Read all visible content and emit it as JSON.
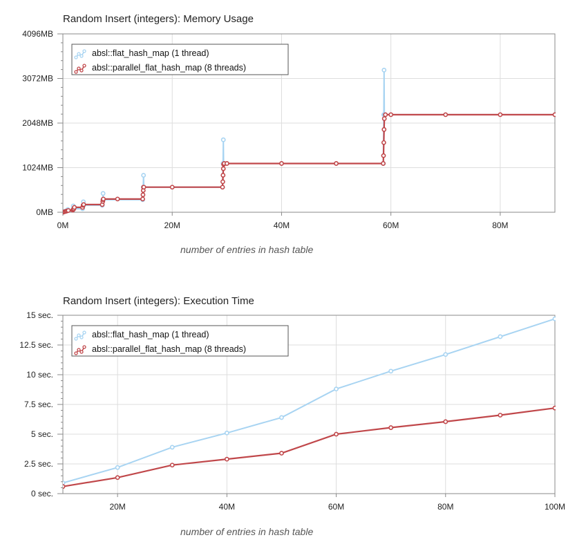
{
  "chart_data": [
    {
      "type": "line",
      "title": "Random Insert (integers): Memory Usage",
      "xlabel": "number of entries in hash table",
      "ylabel": "",
      "x_unit": "entries",
      "xlim": [
        0,
        90000000
      ],
      "ylim": [
        0,
        4096
      ],
      "x_ticks": [
        0,
        20000000,
        40000000,
        60000000,
        80000000
      ],
      "x_tick_labels": [
        "0M",
        "20M",
        "40M",
        "60M",
        "80M"
      ],
      "y_ticks": [
        0,
        1024,
        2048,
        3072,
        4096
      ],
      "y_tick_labels": [
        "0MB",
        "1024MB",
        "2048MB",
        "3072MB",
        "4096MB"
      ],
      "grid": true,
      "legend_position": "top-left",
      "series": [
        {
          "name": "absl::flat_hash_map (1 thread)",
          "color": "#a8d4f2",
          "points": [
            [
              0,
              0
            ],
            [
              200000,
              16
            ],
            [
              400000,
              24
            ],
            [
              600000,
              24
            ],
            [
              800000,
              48
            ],
            [
              900000,
              64
            ],
            [
              1000000,
              40
            ],
            [
              1800000,
              48
            ],
            [
              1900000,
              80
            ],
            [
              1900000,
              144
            ],
            [
              1950000,
              80
            ],
            [
              3600000,
              80
            ],
            [
              3700000,
              160
            ],
            [
              3750000,
              240
            ],
            [
              3800000,
              160
            ],
            [
              7200000,
              160
            ],
            [
              7300000,
              288
            ],
            [
              7350000,
              432
            ],
            [
              7400000,
              288
            ],
            [
              14600000,
              288
            ],
            [
              14700000,
              576
            ],
            [
              14750000,
              848
            ],
            [
              14800000,
              576
            ],
            [
              29200000,
              576
            ],
            [
              29300000,
              1120
            ],
            [
              29350000,
              1664
            ],
            [
              29400000,
              1120
            ],
            [
              58600000,
              1120
            ],
            [
              58700000,
              2240
            ],
            [
              58750000,
              3264
            ],
            [
              58800000,
              2240
            ],
            [
              90000000,
              2240
            ]
          ]
        },
        {
          "name": "absl::parallel_flat_hash_map (8 threads)",
          "color": "#c0474a",
          "points": [
            [
              0,
              0
            ],
            [
              200000,
              8
            ],
            [
              400000,
              16
            ],
            [
              600000,
              24
            ],
            [
              800000,
              32
            ],
            [
              1000000,
              40
            ],
            [
              1800000,
              48
            ],
            [
              1900000,
              64
            ],
            [
              2000000,
              80
            ],
            [
              2100000,
              112
            ],
            [
              3600000,
              112
            ],
            [
              3700000,
              160
            ],
            [
              3800000,
              176
            ],
            [
              7200000,
              176
            ],
            [
              7300000,
              248
            ],
            [
              7350000,
              288
            ],
            [
              7400000,
              304
            ],
            [
              10000000,
              304
            ],
            [
              14600000,
              304
            ],
            [
              14650000,
              400
            ],
            [
              14700000,
              500
            ],
            [
              14750000,
              576
            ],
            [
              14800000,
              576
            ],
            [
              20000000,
              576
            ],
            [
              29200000,
              576
            ],
            [
              29250000,
              700
            ],
            [
              29300000,
              850
            ],
            [
              29350000,
              1000
            ],
            [
              29400000,
              1100
            ],
            [
              29500000,
              1120
            ],
            [
              30000000,
              1120
            ],
            [
              40000000,
              1120
            ],
            [
              50000000,
              1120
            ],
            [
              58600000,
              1120
            ],
            [
              58650000,
              1300
            ],
            [
              58700000,
              1600
            ],
            [
              58750000,
              1900
            ],
            [
              58800000,
              2150
            ],
            [
              59000000,
              2240
            ],
            [
              60000000,
              2240
            ],
            [
              70000000,
              2240
            ],
            [
              80000000,
              2240
            ],
            [
              90000000,
              2240
            ]
          ]
        }
      ]
    },
    {
      "type": "line",
      "title": "Random Insert (integers): Execution Time",
      "xlabel": "number of entries in hash table",
      "ylabel": "",
      "x_unit": "entries",
      "xlim": [
        10000000,
        100000000
      ],
      "ylim": [
        0,
        15
      ],
      "x_ticks": [
        20000000,
        40000000,
        60000000,
        80000000,
        100000000
      ],
      "x_tick_labels": [
        "20M",
        "40M",
        "60M",
        "80M",
        "100M"
      ],
      "y_ticks": [
        0,
        2.5,
        5,
        7.5,
        10,
        12.5,
        15
      ],
      "y_tick_labels": [
        "0 sec.",
        "2.5 sec.",
        "5 sec.",
        "7.5 sec.",
        "10 sec.",
        "12.5 sec.",
        "15 sec."
      ],
      "grid": true,
      "legend_position": "top-left",
      "series": [
        {
          "name": "absl::flat_hash_map (1 thread)",
          "color": "#a8d4f2",
          "points": [
            [
              10000000,
              0.9
            ],
            [
              20000000,
              2.2
            ],
            [
              30000000,
              3.9
            ],
            [
              40000000,
              5.1
            ],
            [
              50000000,
              6.4
            ],
            [
              60000000,
              8.8
            ],
            [
              70000000,
              10.3
            ],
            [
              80000000,
              11.7
            ],
            [
              90000000,
              13.2
            ],
            [
              100000000,
              14.7
            ]
          ]
        },
        {
          "name": "absl::parallel_flat_hash_map (8 threads)",
          "color": "#c0474a",
          "points": [
            [
              10000000,
              0.6
            ],
            [
              20000000,
              1.35
            ],
            [
              30000000,
              2.4
            ],
            [
              40000000,
              2.9
            ],
            [
              50000000,
              3.4
            ],
            [
              60000000,
              5.0
            ],
            [
              70000000,
              5.55
            ],
            [
              80000000,
              6.05
            ],
            [
              90000000,
              6.6
            ],
            [
              100000000,
              7.2
            ]
          ]
        }
      ]
    }
  ]
}
